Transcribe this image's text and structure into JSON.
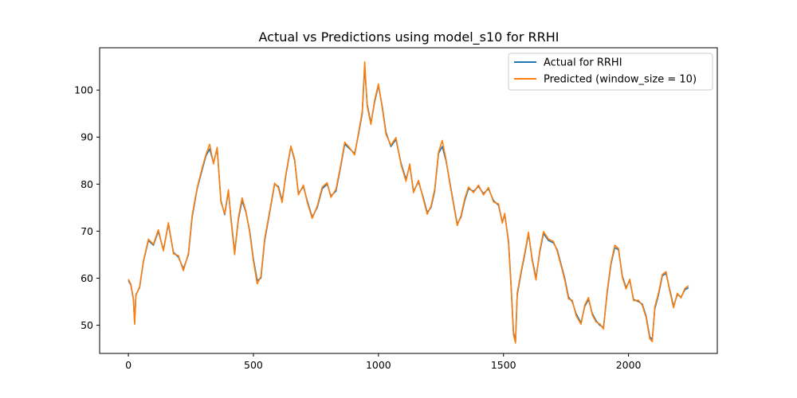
{
  "chart_data": {
    "type": "line",
    "title": "Actual vs Predictions using model_s10 for RRHI",
    "xlabel": "",
    "ylabel": "",
    "xlim": [
      -115,
      2355
    ],
    "ylim": [
      44,
      109
    ],
    "xticks": [
      0,
      500,
      1000,
      1500,
      2000
    ],
    "yticks": [
      50,
      60,
      70,
      80,
      90,
      100
    ],
    "grid": false,
    "legend_position": "upper right",
    "series": [
      {
        "name": "Actual for RRHI",
        "color": "#1f77b4",
        "points": [
          [
            0,
            59.5
          ],
          [
            10,
            58.5
          ],
          [
            20,
            55.5
          ],
          [
            25,
            50.5
          ],
          [
            30,
            56.5
          ],
          [
            45,
            58
          ],
          [
            60,
            63.5
          ],
          [
            80,
            68
          ],
          [
            100,
            67
          ],
          [
            120,
            70
          ],
          [
            140,
            66
          ],
          [
            160,
            71.5
          ],
          [
            180,
            65.5
          ],
          [
            200,
            64.5
          ],
          [
            220,
            62
          ],
          [
            240,
            65
          ],
          [
            255,
            73
          ],
          [
            275,
            79
          ],
          [
            295,
            83
          ],
          [
            310,
            86
          ],
          [
            325,
            87.5
          ],
          [
            340,
            84.5
          ],
          [
            355,
            87.5
          ],
          [
            370,
            76.5
          ],
          [
            385,
            73.5
          ],
          [
            400,
            78.5
          ],
          [
            410,
            73
          ],
          [
            425,
            65.5
          ],
          [
            440,
            72.5
          ],
          [
            455,
            76.5
          ],
          [
            470,
            74
          ],
          [
            485,
            70
          ],
          [
            500,
            64
          ],
          [
            515,
            59.5
          ],
          [
            530,
            60
          ],
          [
            545,
            68
          ],
          [
            565,
            74
          ],
          [
            585,
            80
          ],
          [
            600,
            79.5
          ],
          [
            615,
            76.5
          ],
          [
            630,
            82
          ],
          [
            650,
            88
          ],
          [
            665,
            85
          ],
          [
            680,
            78
          ],
          [
            700,
            79.5
          ],
          [
            715,
            76.5
          ],
          [
            735,
            73
          ],
          [
            755,
            75
          ],
          [
            775,
            79
          ],
          [
            795,
            80
          ],
          [
            810,
            77.5
          ],
          [
            830,
            78.5
          ],
          [
            850,
            84
          ],
          [
            865,
            88.5
          ],
          [
            885,
            87.5
          ],
          [
            905,
            86.5
          ],
          [
            920,
            90.5
          ],
          [
            935,
            95
          ],
          [
            945,
            105
          ],
          [
            955,
            97
          ],
          [
            970,
            93
          ],
          [
            985,
            97.5
          ],
          [
            1000,
            101
          ],
          [
            1015,
            96.5
          ],
          [
            1030,
            91
          ],
          [
            1050,
            88
          ],
          [
            1070,
            89.5
          ],
          [
            1090,
            84.5
          ],
          [
            1110,
            81
          ],
          [
            1125,
            84
          ],
          [
            1140,
            78.5
          ],
          [
            1160,
            80.5
          ],
          [
            1180,
            77
          ],
          [
            1195,
            74
          ],
          [
            1210,
            75
          ],
          [
            1225,
            78.5
          ],
          [
            1240,
            86.5
          ],
          [
            1255,
            88
          ],
          [
            1270,
            85
          ],
          [
            1285,
            80.5
          ],
          [
            1300,
            76
          ],
          [
            1315,
            71.5
          ],
          [
            1330,
            73
          ],
          [
            1345,
            76.5
          ],
          [
            1360,
            79
          ],
          [
            1380,
            78.5
          ],
          [
            1400,
            79.5
          ],
          [
            1420,
            78
          ],
          [
            1440,
            79
          ],
          [
            1460,
            76.5
          ],
          [
            1480,
            75.5
          ],
          [
            1495,
            72
          ],
          [
            1505,
            73.5
          ],
          [
            1520,
            68
          ],
          [
            1530,
            59
          ],
          [
            1540,
            48.5
          ],
          [
            1548,
            46.5
          ],
          [
            1555,
            56.5
          ],
          [
            1570,
            61
          ],
          [
            1585,
            65
          ],
          [
            1600,
            69.5
          ],
          [
            1615,
            64
          ],
          [
            1630,
            60
          ],
          [
            1645,
            65.5
          ],
          [
            1660,
            69.5
          ],
          [
            1680,
            68
          ],
          [
            1700,
            67.5
          ],
          [
            1715,
            66
          ],
          [
            1730,
            63
          ],
          [
            1745,
            60
          ],
          [
            1760,
            56
          ],
          [
            1775,
            55
          ],
          [
            1790,
            52.5
          ],
          [
            1810,
            50.5
          ],
          [
            1825,
            54
          ],
          [
            1840,
            55.5
          ],
          [
            1855,
            52.5
          ],
          [
            1870,
            51
          ],
          [
            1885,
            50
          ],
          [
            1900,
            49.5
          ],
          [
            1915,
            57
          ],
          [
            1930,
            63
          ],
          [
            1945,
            66.5
          ],
          [
            1960,
            66
          ],
          [
            1975,
            60.5
          ],
          [
            1990,
            58
          ],
          [
            2005,
            59.5
          ],
          [
            2020,
            55.5
          ],
          [
            2040,
            55
          ],
          [
            2055,
            54.5
          ],
          [
            2070,
            52
          ],
          [
            2085,
            47.5
          ],
          [
            2095,
            47
          ],
          [
            2105,
            53.5
          ],
          [
            2120,
            56.5
          ],
          [
            2135,
            60.5
          ],
          [
            2150,
            61
          ],
          [
            2165,
            57.5
          ],
          [
            2180,
            54
          ],
          [
            2195,
            56.5
          ],
          [
            2210,
            56
          ],
          [
            2225,
            57.5
          ],
          [
            2240,
            58
          ]
        ]
      },
      {
        "name": "Predicted (window_size = 10)",
        "color": "#ff7f0e",
        "points": [
          [
            0,
            59.8
          ],
          [
            10,
            58.7
          ],
          [
            20,
            55.6
          ],
          [
            25,
            50.2
          ],
          [
            30,
            56.3
          ],
          [
            45,
            58.2
          ],
          [
            60,
            63.6
          ],
          [
            80,
            68.3
          ],
          [
            100,
            67.2
          ],
          [
            120,
            70.3
          ],
          [
            140,
            65.8
          ],
          [
            160,
            71.8
          ],
          [
            180,
            65.2
          ],
          [
            200,
            64.8
          ],
          [
            220,
            61.6
          ],
          [
            240,
            65.3
          ],
          [
            255,
            73.4
          ],
          [
            275,
            79.2
          ],
          [
            295,
            83.4
          ],
          [
            310,
            86.3
          ],
          [
            325,
            88.5
          ],
          [
            340,
            84.3
          ],
          [
            355,
            87.8
          ],
          [
            370,
            76.2
          ],
          [
            385,
            73.7
          ],
          [
            400,
            78.8
          ],
          [
            410,
            72.6
          ],
          [
            425,
            65
          ],
          [
            440,
            72.9
          ],
          [
            455,
            77.1
          ],
          [
            470,
            74.2
          ],
          [
            485,
            69.7
          ],
          [
            500,
            63.6
          ],
          [
            515,
            58.8
          ],
          [
            530,
            60.4
          ],
          [
            545,
            68.4
          ],
          [
            565,
            74.3
          ],
          [
            585,
            80.2
          ],
          [
            600,
            79.2
          ],
          [
            615,
            76.1
          ],
          [
            630,
            82.3
          ],
          [
            650,
            88.1
          ],
          [
            665,
            85.3
          ],
          [
            680,
            77.7
          ],
          [
            700,
            79.8
          ],
          [
            715,
            76.2
          ],
          [
            735,
            72.7
          ],
          [
            755,
            75.3
          ],
          [
            775,
            79.4
          ],
          [
            795,
            80.3
          ],
          [
            810,
            77.2
          ],
          [
            830,
            78.9
          ],
          [
            850,
            84.3
          ],
          [
            865,
            88.9
          ],
          [
            885,
            87.7
          ],
          [
            905,
            86.2
          ],
          [
            920,
            90.8
          ],
          [
            935,
            95.4
          ],
          [
            945,
            106
          ],
          [
            955,
            96.6
          ],
          [
            970,
            92.7
          ],
          [
            985,
            97.9
          ],
          [
            1000,
            101.3
          ],
          [
            1015,
            96.2
          ],
          [
            1030,
            90.6
          ],
          [
            1050,
            88.3
          ],
          [
            1070,
            89.9
          ],
          [
            1090,
            84.2
          ],
          [
            1110,
            80.6
          ],
          [
            1125,
            84.3
          ],
          [
            1140,
            78.2
          ],
          [
            1160,
            80.8
          ],
          [
            1180,
            76.7
          ],
          [
            1195,
            73.6
          ],
          [
            1210,
            75.3
          ],
          [
            1225,
            78.9
          ],
          [
            1240,
            86.8
          ],
          [
            1255,
            89.3
          ],
          [
            1270,
            85.3
          ],
          [
            1285,
            80.2
          ],
          [
            1300,
            75.7
          ],
          [
            1315,
            71.2
          ],
          [
            1330,
            73.3
          ],
          [
            1345,
            76.9
          ],
          [
            1360,
            79.4
          ],
          [
            1380,
            78.2
          ],
          [
            1400,
            79.8
          ],
          [
            1420,
            77.7
          ],
          [
            1440,
            79.3
          ],
          [
            1460,
            76.2
          ],
          [
            1480,
            75.8
          ],
          [
            1495,
            71.7
          ],
          [
            1505,
            73.8
          ],
          [
            1520,
            67.6
          ],
          [
            1530,
            58.5
          ],
          [
            1540,
            48
          ],
          [
            1548,
            46.2
          ],
          [
            1555,
            56.9
          ],
          [
            1570,
            61.3
          ],
          [
            1585,
            65.4
          ],
          [
            1600,
            69.8
          ],
          [
            1615,
            63.7
          ],
          [
            1630,
            59.6
          ],
          [
            1645,
            65.8
          ],
          [
            1660,
            69.9
          ],
          [
            1680,
            68.3
          ],
          [
            1700,
            67.8
          ],
          [
            1715,
            65.7
          ],
          [
            1730,
            62.7
          ],
          [
            1745,
            59.6
          ],
          [
            1760,
            55.6
          ],
          [
            1775,
            55.3
          ],
          [
            1790,
            52.1
          ],
          [
            1810,
            50.2
          ],
          [
            1825,
            54.3
          ],
          [
            1840,
            55.9
          ],
          [
            1855,
            52.2
          ],
          [
            1870,
            50.7
          ],
          [
            1885,
            50.3
          ],
          [
            1900,
            49.2
          ],
          [
            1915,
            57.4
          ],
          [
            1930,
            63.3
          ],
          [
            1945,
            67
          ],
          [
            1960,
            66.3
          ],
          [
            1975,
            60.2
          ],
          [
            1990,
            57.7
          ],
          [
            2005,
            59.8
          ],
          [
            2020,
            55.2
          ],
          [
            2040,
            55.3
          ],
          [
            2055,
            54.2
          ],
          [
            2070,
            51.7
          ],
          [
            2085,
            47.1
          ],
          [
            2095,
            46.5
          ],
          [
            2105,
            53.9
          ],
          [
            2120,
            56.9
          ],
          [
            2135,
            60.8
          ],
          [
            2150,
            61.4
          ],
          [
            2165,
            57.2
          ],
          [
            2180,
            53.7
          ],
          [
            2195,
            56.8
          ],
          [
            2210,
            55.8
          ],
          [
            2225,
            57.8
          ],
          [
            2240,
            58.4
          ]
        ]
      }
    ]
  }
}
